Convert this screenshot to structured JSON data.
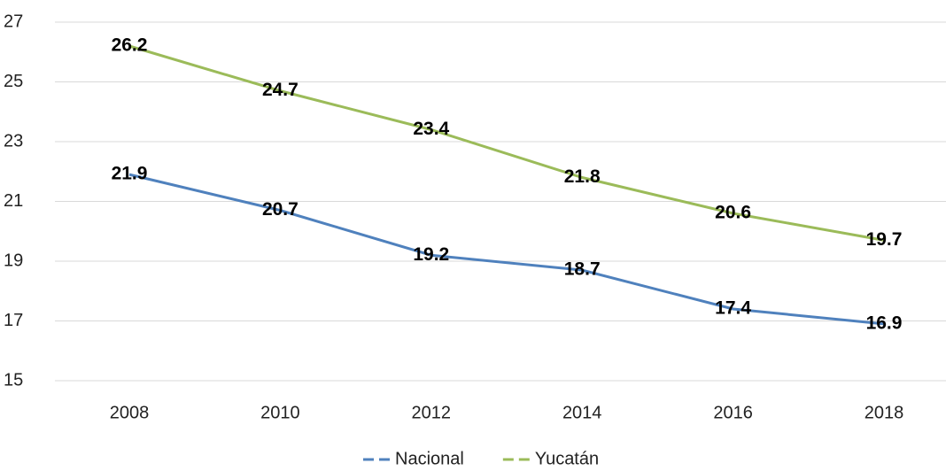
{
  "chart_data": {
    "type": "line",
    "categories": [
      "2008",
      "2010",
      "2012",
      "2014",
      "2016",
      "2018"
    ],
    "series": [
      {
        "name": "Nacional",
        "color": "#4f81bd",
        "values": [
          21.9,
          20.7,
          19.2,
          18.7,
          17.4,
          16.9
        ]
      },
      {
        "name": "Yucatán",
        "color": "#9bbb59",
        "values": [
          26.2,
          24.7,
          23.4,
          21.8,
          20.6,
          19.7
        ]
      }
    ],
    "ylim": [
      15,
      27
    ],
    "yticks": [
      15,
      17,
      19,
      21,
      23,
      25,
      27
    ],
    "grid": true,
    "legend": "bottom"
  }
}
